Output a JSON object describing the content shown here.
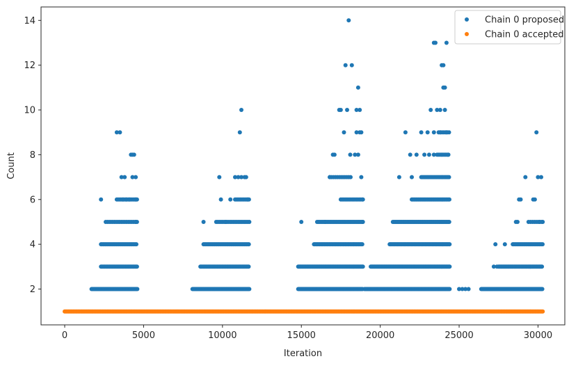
{
  "chart_data": {
    "type": "scatter",
    "title": "",
    "xlabel": "Iteration",
    "ylabel": "Count",
    "xlim": [
      -1500,
      31700
    ],
    "ylim": [
      0.4,
      14.6
    ],
    "xticks": [
      0,
      5000,
      10000,
      15000,
      20000,
      25000,
      30000
    ],
    "yticks": [
      2,
      4,
      6,
      8,
      10,
      12,
      14
    ],
    "legend_position": "top-right",
    "grid": false,
    "series": [
      {
        "name": "Chain 0 proposed",
        "color": "#1f77b4",
        "segments": [
          {
            "x_start": 1700,
            "x_end": 4600,
            "count": 2,
            "step": 50
          },
          {
            "x_start": 2300,
            "x_end": 4600,
            "count": 3,
            "step": 60
          },
          {
            "x_start": 2300,
            "x_end": 4600,
            "count": 4,
            "step": 70
          },
          {
            "x_start": 2600,
            "x_end": 4600,
            "count": 5,
            "step": 110
          },
          {
            "x_start": 3300,
            "x_end": 4600,
            "count": 6,
            "step": 80
          },
          {
            "x_start": 8100,
            "x_end": 11700,
            "count": 2,
            "step": 50
          },
          {
            "x_start": 8600,
            "x_end": 11700,
            "count": 3,
            "step": 60
          },
          {
            "x_start": 8800,
            "x_end": 11700,
            "count": 4,
            "step": 70
          },
          {
            "x_start": 9600,
            "x_end": 11700,
            "count": 5,
            "step": 100
          },
          {
            "x_start": 10800,
            "x_end": 11700,
            "count": 6,
            "step": 80
          },
          {
            "x_start": 14800,
            "x_end": 18900,
            "count": 2,
            "step": 40
          },
          {
            "x_start": 14800,
            "x_end": 18900,
            "count": 3,
            "step": 50
          },
          {
            "x_start": 15800,
            "x_end": 18900,
            "count": 4,
            "step": 60
          },
          {
            "x_start": 16000,
            "x_end": 18900,
            "count": 5,
            "step": 80
          },
          {
            "x_start": 17500,
            "x_end": 18900,
            "count": 6,
            "step": 90
          },
          {
            "x_start": 16800,
            "x_end": 18200,
            "count": 7,
            "step": 120
          },
          {
            "x_start": 19000,
            "x_end": 24400,
            "count": 2,
            "step": 40
          },
          {
            "x_start": 19400,
            "x_end": 24400,
            "count": 3,
            "step": 50
          },
          {
            "x_start": 20600,
            "x_end": 24400,
            "count": 4,
            "step": 55
          },
          {
            "x_start": 20800,
            "x_end": 24400,
            "count": 5,
            "step": 70
          },
          {
            "x_start": 22000,
            "x_end": 24400,
            "count": 6,
            "step": 70
          },
          {
            "x_start": 22600,
            "x_end": 24400,
            "count": 7,
            "step": 80
          },
          {
            "x_start": 23600,
            "x_end": 24400,
            "count": 8,
            "step": 90
          },
          {
            "x_start": 23700,
            "x_end": 24400,
            "count": 9,
            "step": 110
          },
          {
            "x_start": 26400,
            "x_end": 30300,
            "count": 2,
            "step": 45
          },
          {
            "x_start": 27500,
            "x_end": 30300,
            "count": 3,
            "step": 55
          },
          {
            "x_start": 28400,
            "x_end": 30300,
            "count": 4,
            "step": 70
          },
          {
            "x_start": 29400,
            "x_end": 30300,
            "count": 5,
            "step": 120
          }
        ],
        "points": [
          [
            2300,
            6
          ],
          [
            3300,
            9
          ],
          [
            3500,
            9
          ],
          [
            3600,
            7
          ],
          [
            3700,
            6
          ],
          [
            3800,
            7
          ],
          [
            3900,
            6
          ],
          [
            4100,
            6
          ],
          [
            4200,
            8
          ],
          [
            4300,
            8
          ],
          [
            4300,
            7
          ],
          [
            4400,
            8
          ],
          [
            4500,
            7
          ],
          [
            4500,
            6
          ],
          [
            4500,
            5
          ],
          [
            8800,
            5
          ],
          [
            9800,
            7
          ],
          [
            9900,
            6
          ],
          [
            10200,
            5
          ],
          [
            10500,
            6
          ],
          [
            10800,
            7
          ],
          [
            11000,
            7
          ],
          [
            11100,
            9
          ],
          [
            11200,
            10
          ],
          [
            11200,
            7
          ],
          [
            11400,
            7
          ],
          [
            11500,
            7
          ],
          [
            11600,
            6
          ],
          [
            15000,
            5
          ],
          [
            16500,
            5
          ],
          [
            16800,
            7
          ],
          [
            17000,
            8
          ],
          [
            17100,
            8
          ],
          [
            17400,
            10
          ],
          [
            17500,
            10
          ],
          [
            17700,
            9
          ],
          [
            17800,
            12
          ],
          [
            17900,
            10
          ],
          [
            18000,
            14
          ],
          [
            18100,
            8
          ],
          [
            18200,
            12
          ],
          [
            18400,
            8
          ],
          [
            18500,
            10
          ],
          [
            18500,
            9
          ],
          [
            18600,
            11
          ],
          [
            18600,
            8
          ],
          [
            18700,
            9
          ],
          [
            18700,
            10
          ],
          [
            18800,
            9
          ],
          [
            18800,
            7
          ],
          [
            18900,
            6
          ],
          [
            18900,
            5
          ],
          [
            21200,
            7
          ],
          [
            21600,
            9
          ],
          [
            21900,
            8
          ],
          [
            22000,
            7
          ],
          [
            22300,
            8
          ],
          [
            22600,
            9
          ],
          [
            22800,
            8
          ],
          [
            23000,
            9
          ],
          [
            23100,
            8
          ],
          [
            23200,
            10
          ],
          [
            23400,
            13
          ],
          [
            23500,
            13
          ],
          [
            23400,
            9
          ],
          [
            23400,
            8
          ],
          [
            23600,
            10
          ],
          [
            23800,
            10
          ],
          [
            23800,
            9
          ],
          [
            23900,
            12
          ],
          [
            24000,
            12
          ],
          [
            24000,
            11
          ],
          [
            24100,
            11
          ],
          [
            24100,
            10
          ],
          [
            24200,
            13
          ],
          [
            24200,
            9
          ],
          [
            24300,
            8
          ],
          [
            25000,
            2
          ],
          [
            25200,
            2
          ],
          [
            25400,
            2
          ],
          [
            25600,
            2
          ],
          [
            27200,
            3
          ],
          [
            27400,
            3
          ],
          [
            27300,
            4
          ],
          [
            27900,
            4
          ],
          [
            28600,
            5
          ],
          [
            28700,
            5
          ],
          [
            28900,
            6
          ],
          [
            28800,
            6
          ],
          [
            29200,
            7
          ],
          [
            29700,
            6
          ],
          [
            29800,
            6
          ],
          [
            29900,
            9
          ],
          [
            30000,
            7
          ],
          [
            30200,
            7
          ],
          [
            30100,
            5
          ],
          [
            30300,
            5
          ]
        ]
      },
      {
        "name": "Chain 0 accepted",
        "color": "#ff7f0e",
        "segments": [
          {
            "x_start": 0,
            "x_end": 30300,
            "count": 1,
            "step": 60
          }
        ],
        "points": []
      }
    ]
  }
}
